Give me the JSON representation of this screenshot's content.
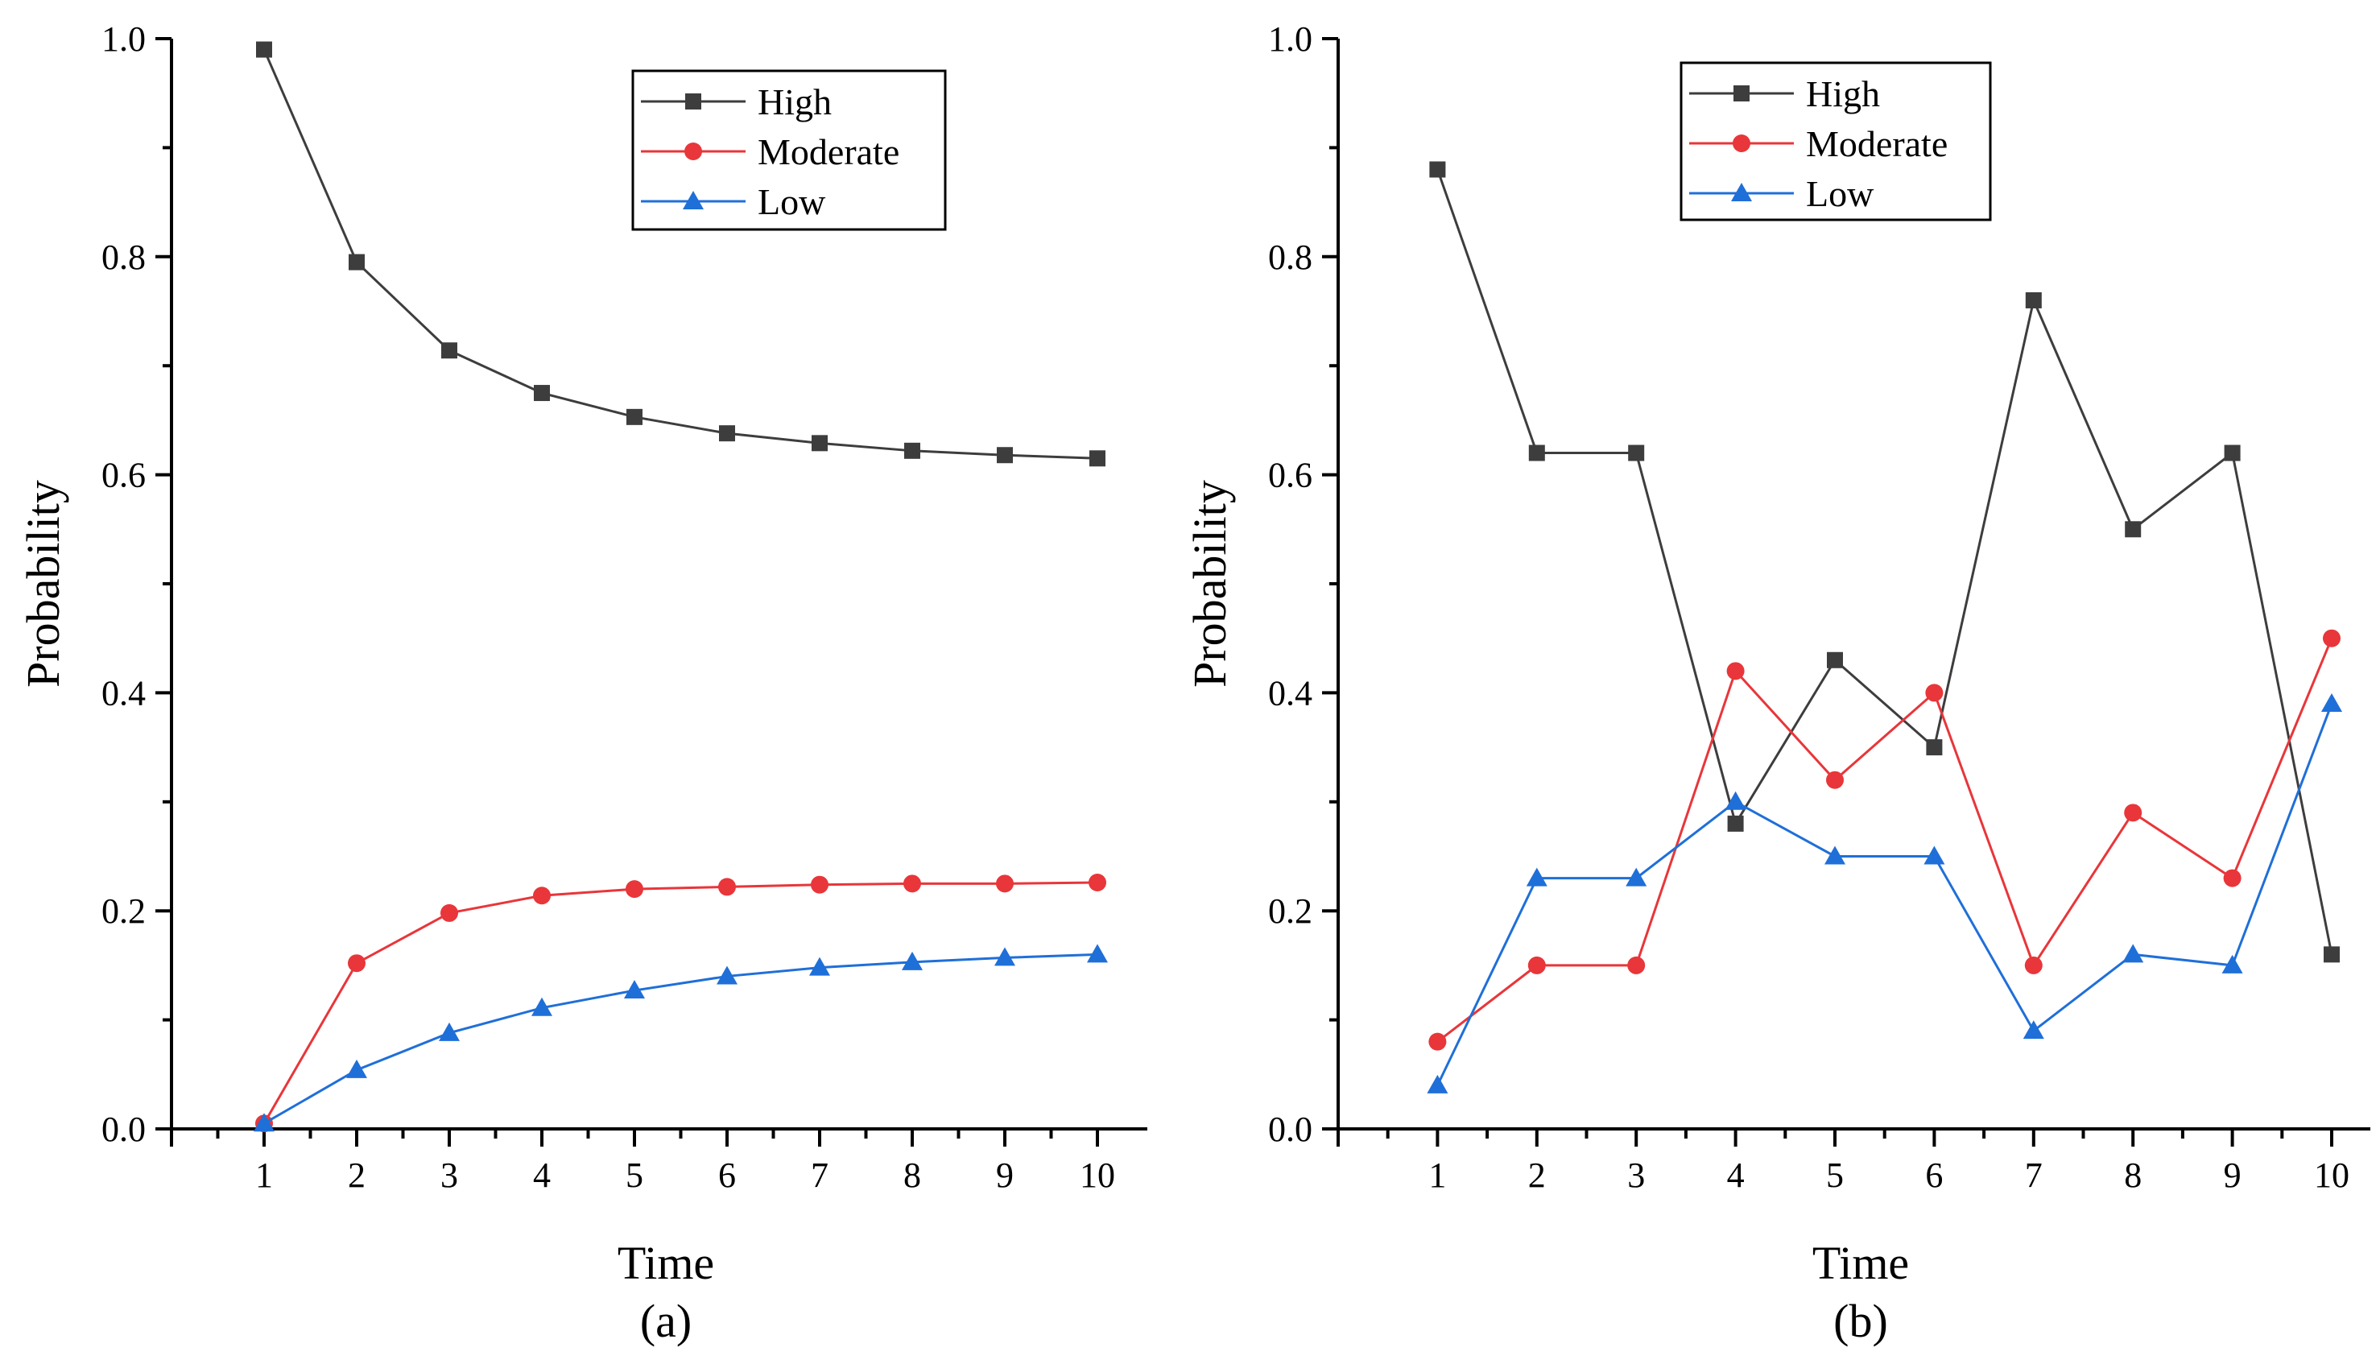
{
  "chart_data": [
    {
      "type": "line",
      "panel_label": "(a)",
      "xlabel": "Time",
      "ylabel": "Probability",
      "xlim": [
        0,
        10.5
      ],
      "ylim": [
        0,
        1.0
      ],
      "x": [
        1,
        2,
        3,
        4,
        5,
        6,
        7,
        8,
        9,
        10
      ],
      "xticks": [
        "1",
        "2",
        "3",
        "4",
        "5",
        "6",
        "7",
        "8",
        "9",
        "10"
      ],
      "yticks": [
        "0.0",
        "0.2",
        "0.4",
        "0.6",
        "0.8",
        "1.0"
      ],
      "legend_position": "top-right",
      "series": [
        {
          "name": "High",
          "color": "#3d3d3d",
          "marker": "square",
          "values": [
            0.99,
            0.795,
            0.714,
            0.675,
            0.653,
            0.638,
            0.629,
            0.622,
            0.618,
            0.615
          ]
        },
        {
          "name": "Moderate",
          "color": "#e8363a",
          "marker": "circle",
          "values": [
            0.005,
            0.152,
            0.198,
            0.214,
            0.22,
            0.222,
            0.224,
            0.225,
            0.225,
            0.226
          ]
        },
        {
          "name": "Low",
          "color": "#1f6fd8",
          "marker": "triangle",
          "values": [
            0.005,
            0.054,
            0.088,
            0.111,
            0.127,
            0.14,
            0.148,
            0.153,
            0.157,
            0.16
          ]
        }
      ]
    },
    {
      "type": "line",
      "panel_label": "(b)",
      "xlabel": "Time",
      "ylabel": "Probability",
      "xlim": [
        0,
        10.5
      ],
      "ylim": [
        0,
        1.0
      ],
      "x": [
        1,
        2,
        3,
        4,
        5,
        6,
        7,
        8,
        9,
        10
      ],
      "xticks": [
        "1",
        "2",
        "3",
        "4",
        "5",
        "6",
        "7",
        "8",
        "9",
        "10"
      ],
      "yticks": [
        "0.0",
        "0.2",
        "0.4",
        "0.6",
        "0.8",
        "1.0"
      ],
      "legend_position": "top-left",
      "series": [
        {
          "name": "High",
          "color": "#3d3d3d",
          "marker": "square",
          "values": [
            0.88,
            0.62,
            0.62,
            0.28,
            0.43,
            0.35,
            0.76,
            0.55,
            0.62,
            0.16
          ]
        },
        {
          "name": "Moderate",
          "color": "#e8363a",
          "marker": "circle",
          "values": [
            0.08,
            0.15,
            0.15,
            0.42,
            0.32,
            0.4,
            0.15,
            0.29,
            0.23,
            0.45
          ]
        },
        {
          "name": "Low",
          "color": "#1f6fd8",
          "marker": "triangle",
          "values": [
            0.04,
            0.23,
            0.23,
            0.3,
            0.25,
            0.25,
            0.09,
            0.16,
            0.15,
            0.39
          ]
        }
      ]
    }
  ]
}
